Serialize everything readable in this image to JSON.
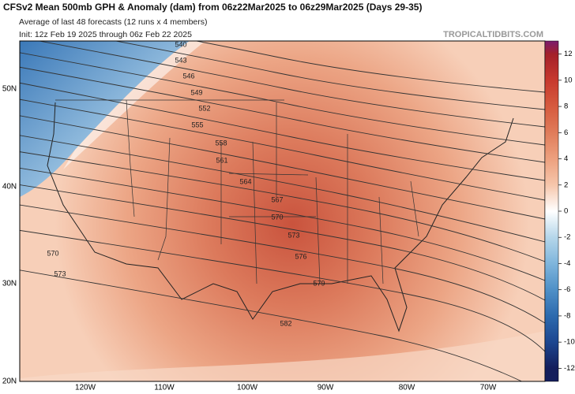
{
  "header": {
    "title": "CFSv2 Mean 500mb GPH & Anomaly (dam) from 06z22Mar2025 to 06z29Mar2025 (Days 29-35)",
    "subtitle": "Average of last 48 forecasts (12 runs x 4 members)",
    "init": "Init: 12z Feb 19 2025 through 06z Feb 22 2025",
    "watermark": "TROPICALTIDBITS.COM"
  },
  "map": {
    "contour_labels": [
      540,
      543,
      546,
      549,
      552,
      555,
      558,
      561,
      564,
      567,
      570,
      573,
      576,
      579,
      582,
      570,
      573
    ],
    "lat_labels": [
      "50N",
      "40N",
      "30N",
      "20N"
    ],
    "lon_labels": [
      "120W",
      "110W",
      "100W",
      "90W",
      "80W",
      "70W"
    ]
  },
  "colorbar": {
    "range": [
      -13,
      13
    ],
    "ticks": [
      12,
      10,
      8,
      6,
      4,
      2,
      0,
      -2,
      -4,
      -6,
      -8,
      -10,
      -12
    ],
    "colors": [
      "#a4202a",
      "#c7392e",
      "#d65a3e",
      "#e07c5a",
      "#eda07e",
      "#f6c6ab",
      "#ffffff",
      "#b5d6ea",
      "#7fb5dc",
      "#4f90c7",
      "#2d6aae",
      "#1c4690",
      "#141e5c"
    ]
  }
}
